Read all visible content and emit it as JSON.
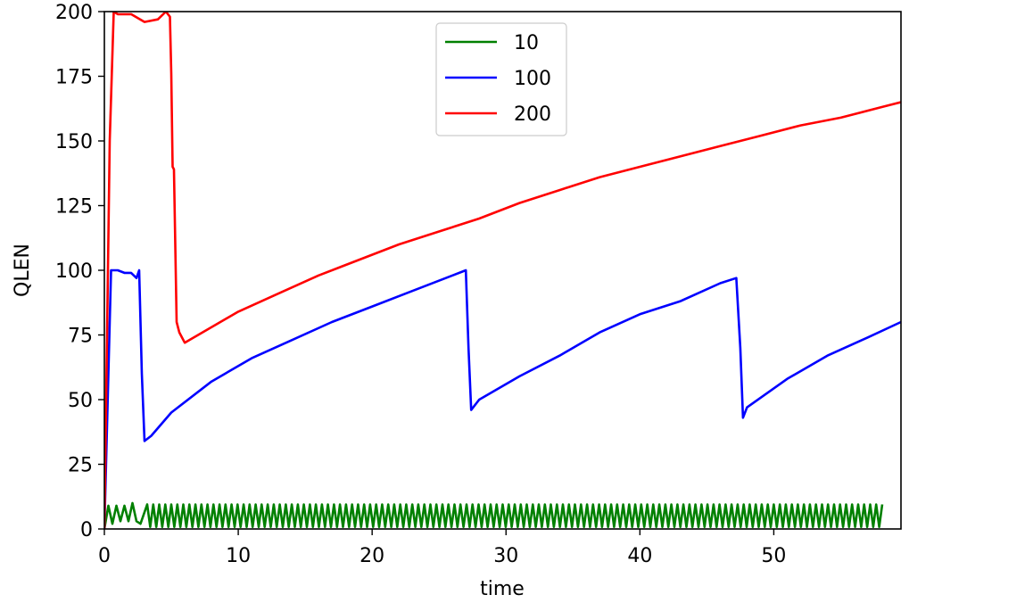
{
  "chart_data": {
    "type": "line",
    "title": "",
    "xlabel": "time",
    "ylabel": "QLEN",
    "xlim": [
      0,
      59.5
    ],
    "ylim": [
      0,
      200
    ],
    "xticks": [
      0,
      10,
      20,
      30,
      40,
      50
    ],
    "yticks": [
      0,
      25,
      50,
      75,
      100,
      125,
      150,
      175,
      200
    ],
    "grid": false,
    "legend_position": "top-center",
    "series": [
      {
        "name": "10",
        "color": "#008000",
        "pattern": "sawtooth",
        "x": [
          0,
          0.3,
          0.6,
          0.9,
          1.2,
          1.5,
          1.8,
          2.1,
          2.4,
          2.7,
          3.2,
          3.6,
          4.0
        ],
        "y": [
          0,
          9,
          2,
          9,
          3,
          9,
          3,
          10,
          3,
          2,
          0,
          9,
          3
        ],
        "sawtooth": {
          "start": 3.2,
          "end": 58.2,
          "period": 0.45,
          "low": 0.8,
          "high": 9.5
        }
      },
      {
        "name": "100",
        "color": "#0000ff",
        "x": [
          0,
          0.5,
          1.0,
          1.5,
          2.0,
          2.4,
          2.6,
          2.8,
          3.0,
          3.5,
          5,
          8,
          11,
          14,
          17,
          20,
          23,
          26,
          27.0,
          27.2,
          27.4,
          28,
          31,
          34,
          37,
          40,
          43,
          46,
          47.2,
          47.5,
          47.7,
          48,
          51,
          54,
          57,
          59.5
        ],
        "y": [
          0,
          100,
          100,
          99,
          99,
          97,
          100,
          60,
          34,
          36,
          45,
          57,
          66,
          73,
          80,
          86,
          92,
          98,
          100,
          70,
          46,
          50,
          59,
          67,
          76,
          83,
          88,
          95,
          97,
          70,
          43,
          47,
          58,
          67,
          74,
          80
        ]
      },
      {
        "name": "200",
        "color": "#ff0000",
        "x": [
          0,
          0.4,
          0.7,
          1.0,
          2.0,
          3.0,
          4.0,
          4.6,
          4.9,
          5.0,
          5.1,
          5.2,
          5.4,
          5.6,
          6.0,
          7,
          10,
          13,
          16,
          19,
          22,
          25,
          28,
          31,
          34,
          37,
          40,
          43,
          46,
          49,
          52,
          55,
          58,
          59.5
        ],
        "y": [
          0,
          150,
          200,
          199,
          199,
          196,
          197,
          200,
          198,
          176,
          140,
          139,
          80,
          76,
          72,
          75,
          84,
          91,
          98,
          104,
          110,
          115,
          120,
          126,
          131,
          136,
          140,
          144,
          148,
          152,
          156,
          159,
          163,
          165
        ]
      }
    ]
  }
}
